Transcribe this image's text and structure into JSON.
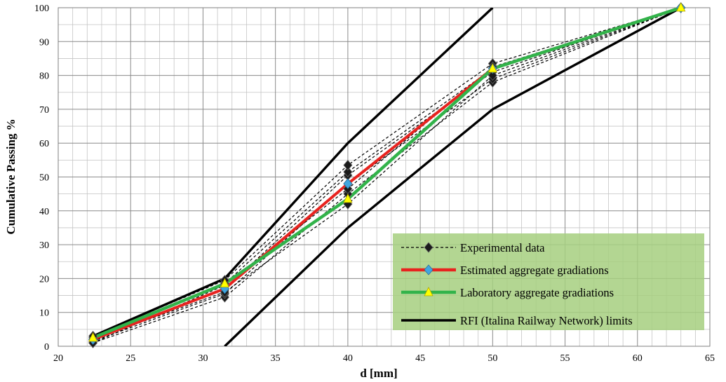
{
  "chart_data": {
    "type": "line",
    "xlabel": "d [mm]",
    "ylabel": "Cumulative Passing %",
    "xlim": [
      20,
      65
    ],
    "ylim": [
      0,
      100
    ],
    "x_ticks": [
      20,
      25,
      30,
      35,
      40,
      45,
      50,
      55,
      60,
      65
    ],
    "y_ticks": [
      0,
      10,
      20,
      30,
      40,
      50,
      60,
      70,
      80,
      90,
      100
    ],
    "x_tick_labels": [
      "20",
      "25",
      "30",
      "35",
      "40",
      "45",
      "50",
      "55",
      "60",
      "65"
    ],
    "y_tick_labels": [
      "0",
      "10",
      "20",
      "30",
      "40",
      "50",
      "60",
      "70",
      "80",
      "90",
      "100"
    ],
    "x_minor_step": 1,
    "y_minor_step": 5,
    "grid": true,
    "legend_position": "bottom-right",
    "legend_background": "#a6cf7f",
    "series": [
      {
        "name": "Experimental data",
        "color": "#000000",
        "style": "dashed",
        "marker": "diamond-black",
        "curves": [
          {
            "x": [
              22.4,
              31.5,
              40,
              50,
              63
            ],
            "y": [
              1,
              14.5,
              45,
              78,
              100
            ]
          },
          {
            "x": [
              22.4,
              31.5,
              40,
              50,
              63
            ],
            "y": [
              1.5,
              15.5,
              48,
              79,
              100
            ]
          },
          {
            "x": [
              22.4,
              31.5,
              40,
              50,
              63
            ],
            "y": [
              2,
              17,
              50.5,
              81,
              100
            ]
          },
          {
            "x": [
              22.4,
              31.5,
              40,
              50,
              63
            ],
            "y": [
              2.5,
              18.5,
              51.5,
              82,
              100
            ]
          },
          {
            "x": [
              22.4,
              31.5,
              40,
              50,
              63
            ],
            "y": [
              3,
              19.5,
              53.5,
              83.5,
              100
            ]
          },
          {
            "x": [
              22.4,
              31.5,
              40,
              50,
              63
            ],
            "y": [
              2,
              16,
              42,
              80,
              100
            ]
          },
          {
            "x": [
              22.4,
              31.5,
              40,
              50,
              63
            ],
            "y": [
              1,
              18,
              46.5,
              82.5,
              100
            ]
          }
        ]
      },
      {
        "name": "Estimated aggregate gradiations",
        "color": "#e8231f",
        "style": "solid",
        "marker": "diamond-blue",
        "x": [
          22.4,
          31.5,
          40,
          50,
          63
        ],
        "y": [
          2,
          17,
          48,
          82,
          100
        ]
      },
      {
        "name": "Laboratory  aggregate gradiations",
        "color": "#32b34a",
        "style": "solid",
        "marker": "triangle-yellow",
        "x": [
          22.4,
          31.5,
          40,
          50,
          63
        ],
        "y": [
          2.5,
          18.5,
          43.5,
          82,
          100
        ]
      },
      {
        "name": "RFI (Italina Railway Network) limits",
        "color": "#000000",
        "style": "solid",
        "marker": "none",
        "curves": [
          {
            "x": [
              22.4,
              31.5,
              40,
              50
            ],
            "y": [
              3,
              20,
              60,
              100
            ]
          },
          {
            "x": [
              31.5,
              40,
              50,
              63
            ],
            "y": [
              0,
              35,
              70,
              100
            ]
          }
        ]
      }
    ]
  }
}
